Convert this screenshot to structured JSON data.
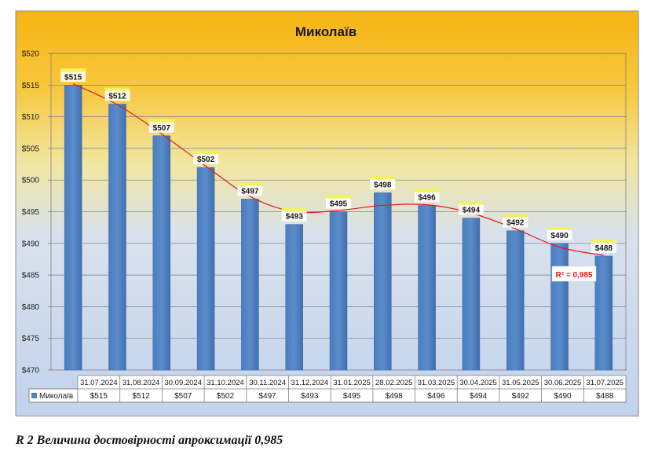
{
  "chart_data": {
    "type": "bar",
    "title": "Миколаїв",
    "categories": [
      "31.07.2024",
      "31.08.2024",
      "30.09.2024",
      "31.10.2024",
      "30.11.2024",
      "31.12.2024",
      "31.01.2025",
      "28.02.2025",
      "31.03.2025",
      "30.04.2025",
      "31.05.2025",
      "30.06.2025",
      "31.07.2025"
    ],
    "series": [
      {
        "name": "Миколаїв",
        "values": [
          515,
          512,
          507,
          502,
          497,
          493,
          495,
          498,
          496,
          494,
          492,
          490,
          488
        ]
      }
    ],
    "data_labels": [
      "$515",
      "$512",
      "$507",
      "$502",
      "$497",
      "$493",
      "$495",
      "$498",
      "$496",
      "$494",
      "$492",
      "$490",
      "$488"
    ],
    "table_values": [
      "$515",
      "$512",
      "$507",
      "$502",
      "$497",
      "$493",
      "$495",
      "$498",
      "$496",
      "$494",
      "$492",
      "$490",
      "$488"
    ],
    "y_ticks": [
      "$470",
      "$475",
      "$480",
      "$485",
      "$490",
      "$495",
      "$500",
      "$505",
      "$510",
      "$515",
      "$520"
    ],
    "ylim": [
      470,
      520
    ],
    "ystep": 5,
    "trendline": {
      "type": "polynomial",
      "values": [
        515.2,
        511.9,
        507.3,
        502.2,
        497.4,
        495.0,
        495.2,
        496.0,
        496.1,
        494.8,
        492.3,
        489.4,
        488.1
      ],
      "r2_label": "R² = 0,985"
    },
    "legend": "data-table",
    "grid": true
  },
  "colors": {
    "bar": "#4f81bd",
    "trend": "#e31b1b",
    "label_tab": "#f2f25a",
    "bg_top": "#f6b412",
    "bg_bottom": "#c5d5ee"
  },
  "caption": "R 2 Величина достовірності апроксимації 0,985"
}
